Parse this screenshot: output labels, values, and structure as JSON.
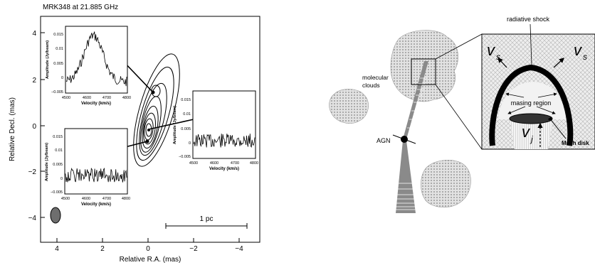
{
  "left_panel": {
    "title": "MRK348 at 21.885 GHz",
    "xlabel": "Relative R.A. (mas)",
    "ylabel": "Relative Decl. (mas)",
    "x_ticks": [
      "4",
      "2",
      "0",
      "−2",
      "−4"
    ],
    "y_ticks": [
      "4",
      "2",
      "0",
      "−2",
      "−4"
    ],
    "scale_bar_label": "1 pc",
    "insets": [
      {
        "id": "top-left",
        "xlabel": "Velocity (km/s)",
        "ylabel": "Amplitude (Jy/beam)",
        "x_ticks": [
          "4500",
          "4600",
          "4700",
          "4800"
        ],
        "y_ticks": [
          "0.015",
          "0.01",
          "0.005",
          "0",
          "−0.005"
        ]
      },
      {
        "id": "right",
        "xlabel": "Velocity (km/s)",
        "ylabel": "Amplitude (Jy/beam)",
        "x_ticks": [
          "4500",
          "4600",
          "4700",
          "4800"
        ],
        "y_ticks": [
          "0.015",
          "0.01",
          "0.005",
          "0",
          "−0.005"
        ]
      },
      {
        "id": "bottom-left",
        "xlabel": "Velocity (km/s)",
        "ylabel": "Amplitude (Jy/beam)",
        "x_ticks": [
          "4500",
          "4600",
          "4700",
          "4800"
        ],
        "y_ticks": [
          "0.015",
          "0.01",
          "0.005",
          "0",
          "−0.005"
        ]
      }
    ]
  },
  "right_panel": {
    "label_radiative_shock": "radiative shock",
    "label_molecular_1": "molecular",
    "label_molecular_2": "clouds",
    "label_agn": "AGN",
    "label_masing_region": "masing region",
    "label_mach_disk": "Mach disk",
    "label_vs": "v",
    "label_vs_sub": "s",
    "label_vj": "v",
    "label_vj_sub": "j"
  },
  "colors": {
    "cloud": "#cfcfcf",
    "beam": "#6e6e6e",
    "disk": "#333333",
    "box_bg": "#e6e6e6"
  }
}
